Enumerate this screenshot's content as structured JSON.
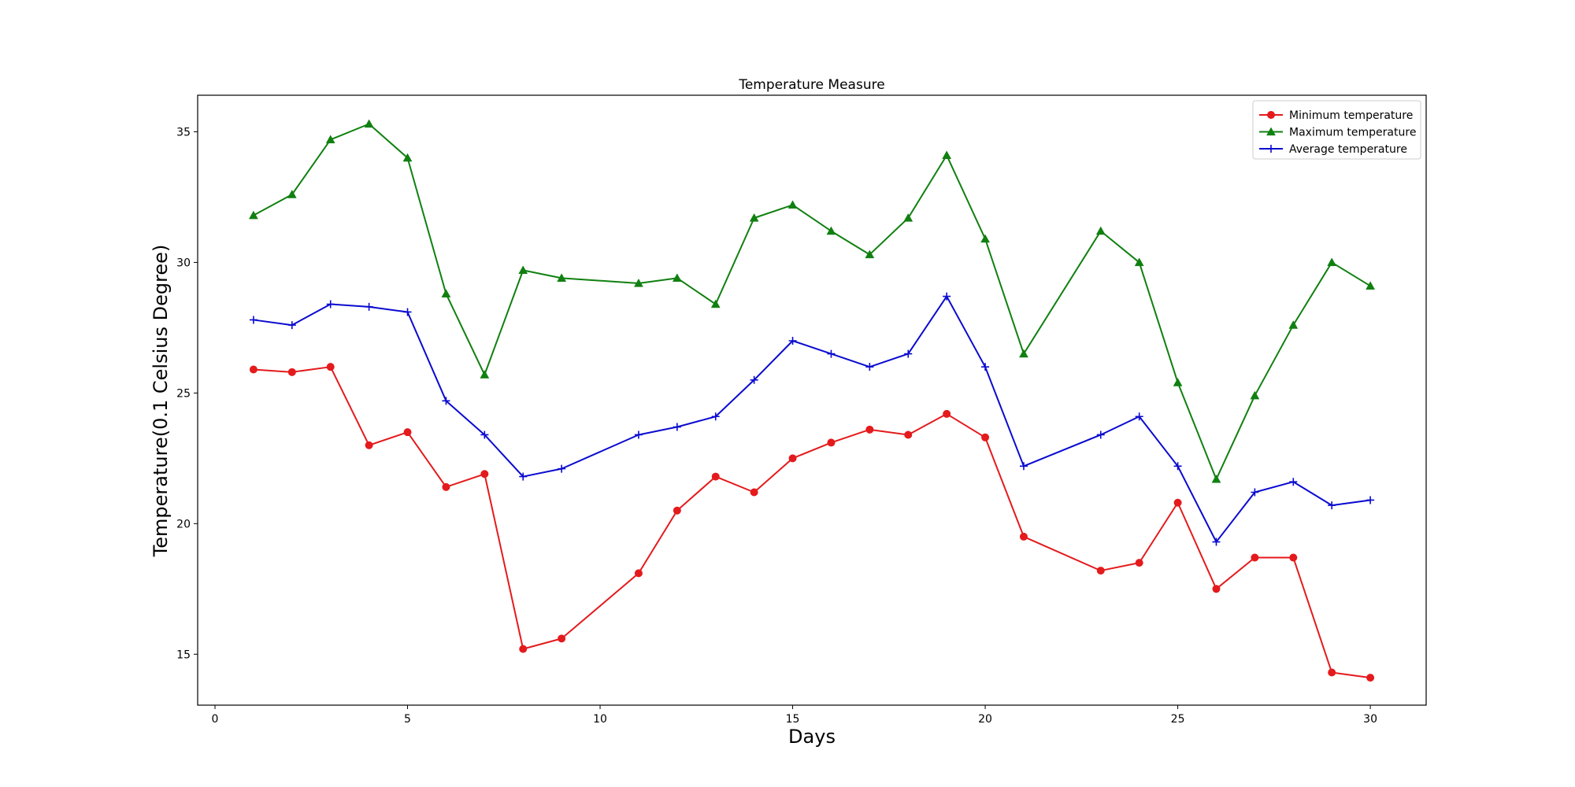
{
  "chart_data": {
    "type": "line",
    "title": "Temperature Measure",
    "xlabel": "Days",
    "ylabel": "Temperature(0.1 Celsius Degree)",
    "xlim": [
      -0.45,
      31.45
    ],
    "ylim": [
      13.05,
      36.4
    ],
    "x_ticks": [
      0,
      5,
      10,
      15,
      20,
      25,
      30
    ],
    "y_ticks": [
      15,
      20,
      25,
      30,
      35
    ],
    "grid": false,
    "legend_position": "top-right",
    "x": [
      1,
      2,
      3,
      4,
      5,
      6,
      7,
      8,
      9,
      11,
      12,
      13,
      14,
      15,
      16,
      17,
      18,
      19,
      20,
      21,
      23,
      24,
      25,
      26,
      27,
      28,
      29,
      30
    ],
    "series": [
      {
        "name": "Minimum temperature",
        "color": "#e41a1c",
        "marker": "circle",
        "values": [
          25.9,
          25.8,
          26.0,
          23.0,
          23.5,
          21.4,
          21.9,
          15.2,
          15.6,
          18.1,
          20.5,
          21.8,
          21.2,
          22.5,
          23.1,
          23.6,
          23.4,
          24.2,
          23.3,
          19.5,
          18.2,
          18.5,
          20.8,
          17.5,
          18.7,
          18.7,
          14.3,
          14.1
        ]
      },
      {
        "name": "Maximum temperature",
        "color": "#108010",
        "marker": "triangle",
        "values": [
          31.8,
          32.6,
          34.7,
          35.3,
          34.0,
          28.8,
          25.7,
          29.7,
          29.4,
          29.2,
          29.4,
          28.4,
          31.7,
          32.2,
          31.2,
          30.3,
          31.7,
          34.1,
          30.9,
          26.5,
          31.2,
          30.0,
          25.4,
          21.7,
          24.9,
          27.6,
          30.0,
          29.1
        ]
      },
      {
        "name": "Average temperature",
        "color": "#0a0ad0",
        "marker": "plus",
        "values": [
          27.8,
          27.6,
          28.4,
          28.3,
          28.1,
          24.7,
          23.4,
          21.8,
          22.1,
          23.4,
          23.7,
          24.1,
          25.5,
          27.0,
          26.5,
          26.0,
          26.5,
          28.7,
          26.0,
          22.2,
          23.4,
          24.1,
          22.2,
          19.3,
          21.2,
          21.6,
          20.7,
          20.9
        ]
      }
    ]
  }
}
